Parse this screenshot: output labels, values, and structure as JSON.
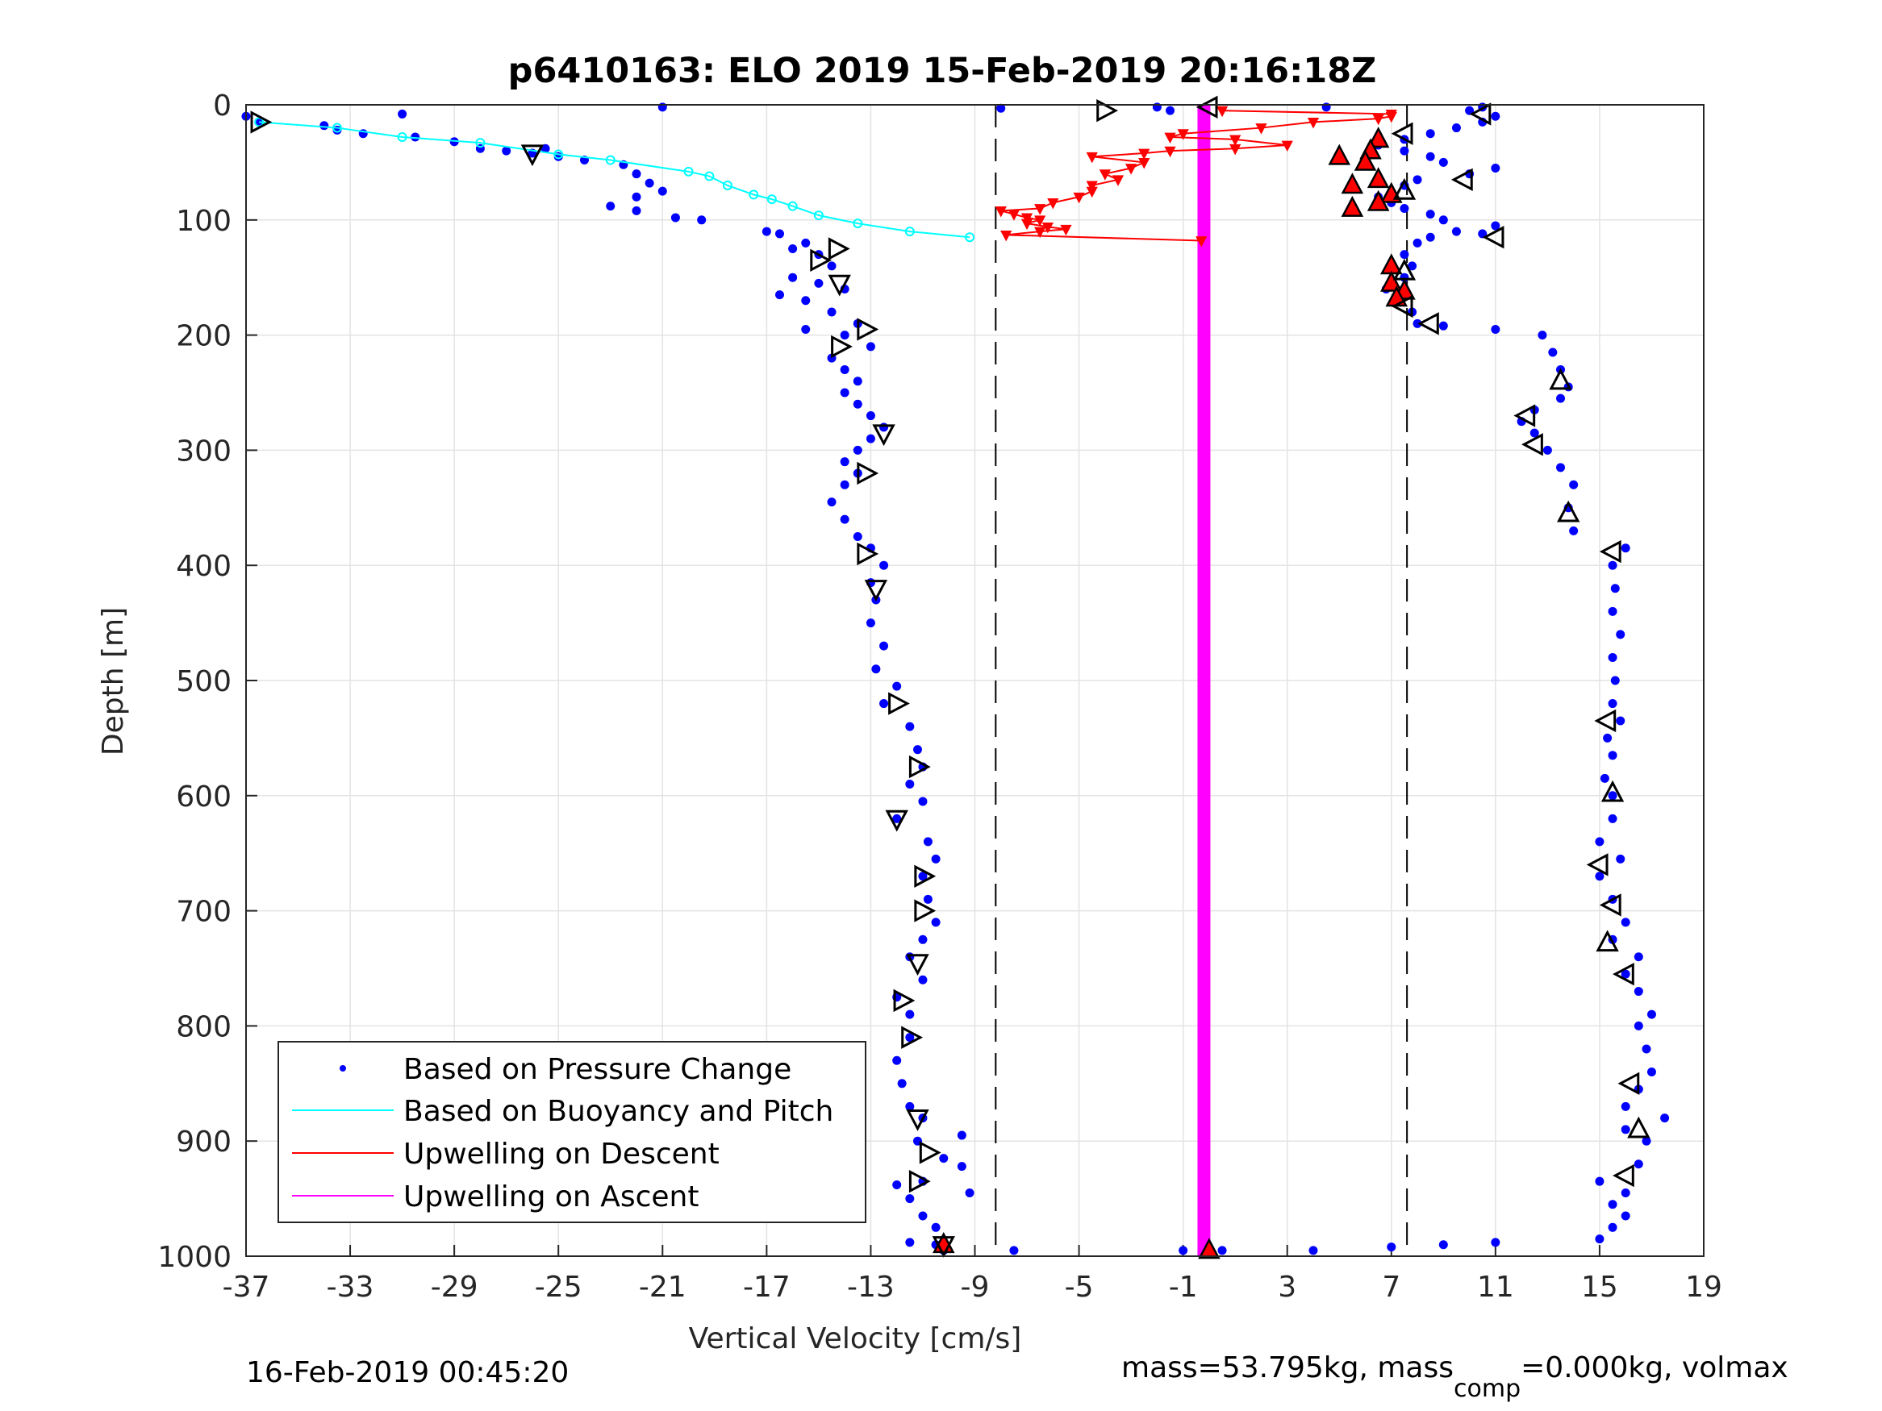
{
  "chart_data": {
    "type": "scatter",
    "title": "p6410163: ELO 2019 15-Feb-2019 20:16:18Z",
    "xlabel": "Vertical Velocity [cm/s]",
    "ylabel": "Depth [m]",
    "xlim": [
      -37,
      19
    ],
    "ylim": [
      0,
      1000
    ],
    "y_reversed": true,
    "xticks": [
      "-37",
      "-33",
      "-29",
      "-25",
      "-21",
      "-17",
      "-13",
      "-9",
      "-5",
      "-1",
      "3",
      "7",
      "11",
      "15",
      "19"
    ],
    "yticks": [
      "0",
      "100",
      "200",
      "300",
      "400",
      "500",
      "600",
      "700",
      "800",
      "900",
      "1000"
    ],
    "grid": true,
    "legend_position": "bottom-left",
    "reference_lines_x": [
      -8.2,
      7.6
    ],
    "footer_left": "16-Feb-2019 00:45:20",
    "footer_right": {
      "part1": "mass=53.795kg, mass",
      "sub": "comp",
      "part2": "=0.000kg, volmax"
    },
    "series": [
      {
        "name": "Based on Pressure Change",
        "marker": "dot",
        "color": "#0000ff",
        "descent": [
          [
            -37,
            10
          ],
          [
            -36.5,
            15
          ],
          [
            -34,
            18
          ],
          [
            -33.5,
            22
          ],
          [
            -32.5,
            25
          ],
          [
            -31,
            8
          ],
          [
            -30.5,
            28
          ],
          [
            -29,
            32
          ],
          [
            -28,
            38
          ],
          [
            -27,
            40
          ],
          [
            -26,
            42
          ],
          [
            -25.5,
            38
          ],
          [
            -25,
            45
          ],
          [
            -24,
            48
          ],
          [
            -22.5,
            52
          ],
          [
            -22,
            60
          ],
          [
            -21.5,
            68
          ],
          [
            -21,
            75
          ],
          [
            -22,
            80
          ],
          [
            -23,
            88
          ],
          [
            -22,
            92
          ],
          [
            -20.5,
            98
          ],
          [
            -19.5,
            100
          ],
          [
            -21,
            2
          ],
          [
            -17,
            110
          ],
          [
            -16.5,
            112
          ],
          [
            -15.5,
            120
          ],
          [
            -16,
            125
          ],
          [
            -15,
            130
          ],
          [
            -14.5,
            140
          ],
          [
            -16,
            150
          ],
          [
            -15,
            155
          ],
          [
            -14,
            160
          ],
          [
            -16.5,
            165
          ],
          [
            -15.5,
            170
          ],
          [
            -14.5,
            180
          ],
          [
            -13.5,
            190
          ],
          [
            -15.5,
            195
          ],
          [
            -14,
            200
          ],
          [
            -13,
            210
          ],
          [
            -14.5,
            220
          ],
          [
            -14,
            230
          ],
          [
            -13.5,
            240
          ],
          [
            -14,
            250
          ],
          [
            -13.5,
            260
          ],
          [
            -13,
            270
          ],
          [
            -12.5,
            280
          ],
          [
            -13,
            290
          ],
          [
            -13.5,
            300
          ],
          [
            -14,
            310
          ],
          [
            -13.5,
            320
          ],
          [
            -14,
            330
          ],
          [
            -14.5,
            345
          ],
          [
            -14,
            360
          ],
          [
            -13.5,
            375
          ],
          [
            -13,
            385
          ],
          [
            -12.5,
            400
          ],
          [
            -13,
            415
          ],
          [
            -12.8,
            430
          ],
          [
            -13,
            450
          ],
          [
            -12.5,
            470
          ],
          [
            -12.8,
            490
          ],
          [
            -12,
            505
          ],
          [
            -12.5,
            520
          ],
          [
            -11.5,
            540
          ],
          [
            -11.2,
            560
          ],
          [
            -11,
            575
          ],
          [
            -11.5,
            590
          ],
          [
            -11,
            605
          ],
          [
            -12,
            620
          ],
          [
            -10.8,
            640
          ],
          [
            -10.5,
            655
          ],
          [
            -11,
            670
          ],
          [
            -10.8,
            690
          ],
          [
            -10.5,
            710
          ],
          [
            -11,
            725
          ],
          [
            -11.5,
            740
          ],
          [
            -11,
            760
          ],
          [
            -12,
            775
          ],
          [
            -11.5,
            790
          ],
          [
            -11.5,
            810
          ],
          [
            -12,
            830
          ],
          [
            -11.8,
            850
          ],
          [
            -11.5,
            870
          ],
          [
            -11,
            880
          ],
          [
            -11.2,
            900
          ],
          [
            -9.5,
            895
          ],
          [
            -10.2,
            915
          ],
          [
            -9.5,
            922
          ],
          [
            -11,
            935
          ],
          [
            -12,
            938
          ],
          [
            -11.5,
            950
          ],
          [
            -9.2,
            945
          ],
          [
            -11,
            965
          ],
          [
            -10.5,
            975
          ],
          [
            -10.5,
            990
          ],
          [
            -10.2,
            995
          ],
          [
            -11.5,
            988
          ],
          [
            -7.5,
            995
          ],
          [
            -8,
            3
          ]
        ],
        "ascent": [
          [
            -1,
            995
          ],
          [
            0.5,
            995
          ],
          [
            4,
            995
          ],
          [
            7,
            992
          ],
          [
            9,
            990
          ],
          [
            11,
            988
          ],
          [
            15,
            985
          ],
          [
            15.5,
            975
          ],
          [
            16,
            965
          ],
          [
            15.5,
            955
          ],
          [
            16,
            945
          ],
          [
            15,
            935
          ],
          [
            16.5,
            920
          ],
          [
            16.8,
            900
          ],
          [
            16,
            890
          ],
          [
            17.5,
            880
          ],
          [
            16,
            870
          ],
          [
            16.5,
            855
          ],
          [
            17,
            840
          ],
          [
            16.8,
            820
          ],
          [
            16.5,
            800
          ],
          [
            17,
            790
          ],
          [
            16.5,
            770
          ],
          [
            16,
            755
          ],
          [
            16.5,
            740
          ],
          [
            15.5,
            725
          ],
          [
            16,
            710
          ],
          [
            15.5,
            690
          ],
          [
            15,
            670
          ],
          [
            15.8,
            655
          ],
          [
            15,
            640
          ],
          [
            15.5,
            620
          ],
          [
            15.5,
            600
          ],
          [
            15.2,
            585
          ],
          [
            15.5,
            565
          ],
          [
            15.3,
            550
          ],
          [
            15.8,
            535
          ],
          [
            15.5,
            520
          ],
          [
            15.6,
            500
          ],
          [
            15.5,
            480
          ],
          [
            15.8,
            460
          ],
          [
            15.5,
            440
          ],
          [
            15.6,
            420
          ],
          [
            15.5,
            400
          ],
          [
            16,
            385
          ],
          [
            14,
            370
          ],
          [
            13.8,
            350
          ],
          [
            14,
            330
          ],
          [
            13.5,
            315
          ],
          [
            13,
            300
          ],
          [
            12.5,
            285
          ],
          [
            12,
            275
          ],
          [
            12.5,
            265
          ],
          [
            13.5,
            255
          ],
          [
            13.8,
            245
          ],
          [
            13.5,
            230
          ],
          [
            13.2,
            215
          ],
          [
            12.8,
            200
          ],
          [
            11,
            195
          ],
          [
            9,
            192
          ],
          [
            8,
            190
          ],
          [
            7.8,
            180
          ],
          [
            7.2,
            170
          ],
          [
            6.8,
            160
          ],
          [
            7.5,
            150
          ],
          [
            7.8,
            140
          ],
          [
            7.5,
            130
          ],
          [
            8,
            120
          ],
          [
            8.5,
            115
          ],
          [
            9.5,
            110
          ],
          [
            10.5,
            112
          ],
          [
            11,
            105
          ],
          [
            9,
            100
          ],
          [
            8.5,
            95
          ],
          [
            7.5,
            90
          ],
          [
            7,
            85
          ],
          [
            6.5,
            80
          ],
          [
            7.5,
            70
          ],
          [
            8,
            65
          ],
          [
            10,
            60
          ],
          [
            11,
            55
          ],
          [
            9,
            50
          ],
          [
            8.5,
            45
          ],
          [
            7.5,
            40
          ],
          [
            6.5,
            35
          ],
          [
            7.5,
            30
          ],
          [
            8.5,
            25
          ],
          [
            9.5,
            20
          ],
          [
            10.5,
            15
          ],
          [
            11,
            10
          ],
          [
            10,
            5
          ],
          [
            10.5,
            2
          ],
          [
            4.5,
            2
          ],
          [
            -2,
            2
          ],
          [
            -1.5,
            5
          ]
        ]
      },
      {
        "name": "Based on Buoyancy and Pitch",
        "marker": "line+circle",
        "color": "#00ffff",
        "points": [
          [
            -36.5,
            15
          ],
          [
            -33.5,
            20
          ],
          [
            -31,
            28
          ],
          [
            -28,
            33
          ],
          [
            -25,
            43
          ],
          [
            -23,
            48
          ],
          [
            -20,
            58
          ],
          [
            -19.2,
            62
          ],
          [
            -18.5,
            70
          ],
          [
            -17.5,
            78
          ],
          [
            -16.8,
            82
          ],
          [
            -16,
            88
          ],
          [
            -15,
            96
          ],
          [
            -13.5,
            103
          ],
          [
            -11.5,
            110
          ],
          [
            -9.2,
            115
          ]
        ]
      },
      {
        "name": "Upwelling on Descent",
        "marker": "line+down-triangle",
        "color": "#ff0000",
        "points": [
          [
            0.5,
            5
          ],
          [
            7,
            8
          ],
          [
            7,
            10
          ],
          [
            6.5,
            12
          ],
          [
            4,
            15
          ],
          [
            2,
            20
          ],
          [
            -1,
            25
          ],
          [
            -1.5,
            28
          ],
          [
            1,
            30
          ],
          [
            3,
            35
          ],
          [
            1,
            38
          ],
          [
            -1.5,
            40
          ],
          [
            -2.5,
            42
          ],
          [
            -4.5,
            45
          ],
          [
            -2.5,
            50
          ],
          [
            -3,
            55
          ],
          [
            -4,
            60
          ],
          [
            -3.5,
            65
          ],
          [
            -4.5,
            70
          ],
          [
            -4.5,
            75
          ],
          [
            -5,
            80
          ],
          [
            -6,
            85
          ],
          [
            -6.5,
            90
          ],
          [
            -8,
            92
          ],
          [
            -7.5,
            95
          ],
          [
            -7,
            98
          ],
          [
            -6.5,
            100
          ],
          [
            -7,
            103
          ],
          [
            -6.2,
            106
          ],
          [
            -5.5,
            108
          ],
          [
            -6.5,
            110
          ],
          [
            -7.8,
            113
          ],
          [
            -0.3,
            118
          ]
        ]
      },
      {
        "name": "Upwelling on Ascent",
        "marker": "thick-line",
        "color": "#ff00ff",
        "points": [
          [
            -0.2,
            0
          ],
          [
            -0.2,
            1000
          ]
        ]
      }
    ],
    "ascent_red_triangles": [
      [
        0,
        995
      ],
      [
        -10.2,
        990
      ],
      [
        6.5,
        30
      ],
      [
        5,
        45
      ],
      [
        6.2,
        40
      ],
      [
        6,
        50
      ],
      [
        6.5,
        65
      ],
      [
        5.5,
        70
      ],
      [
        7,
        78
      ],
      [
        6.5,
        85
      ],
      [
        5.5,
        90
      ],
      [
        7,
        140
      ],
      [
        7,
        155
      ],
      [
        7.5,
        162
      ],
      [
        7.2,
        168
      ]
    ],
    "pitch_triangle_markers": {
      "descent": [
        [
          -36.5,
          15
        ],
        [
          -26,
          42
        ],
        [
          -14.3,
          125
        ],
        [
          -15,
          135
        ],
        [
          -14.2,
          155
        ],
        [
          -13.2,
          195
        ],
        [
          -14.2,
          210
        ],
        [
          -12.5,
          285
        ],
        [
          -13.2,
          320
        ],
        [
          -13.2,
          390
        ],
        [
          -12.8,
          420
        ],
        [
          -12,
          520
        ],
        [
          -11.2,
          575
        ],
        [
          -12,
          620
        ],
        [
          -11,
          670
        ],
        [
          -11,
          700
        ],
        [
          -11.2,
          745
        ],
        [
          -11.8,
          778
        ],
        [
          -11.5,
          810
        ],
        [
          -11.2,
          880
        ],
        [
          -10.8,
          910
        ],
        [
          -11.2,
          935
        ],
        [
          -10.2,
          990
        ],
        [
          -4,
          5
        ]
      ],
      "ascent": [
        [
          10.5,
          8
        ],
        [
          7.5,
          25
        ],
        [
          7.5,
          75
        ],
        [
          9.8,
          65
        ],
        [
          11,
          115
        ],
        [
          7.5,
          145
        ],
        [
          7.5,
          175
        ],
        [
          8.5,
          190
        ],
        [
          13.5,
          240
        ],
        [
          12.2,
          270
        ],
        [
          12.5,
          295
        ],
        [
          13.8,
          355
        ],
        [
          15.5,
          388
        ],
        [
          15.3,
          535
        ],
        [
          15.5,
          598
        ],
        [
          15,
          660
        ],
        [
          15.5,
          695
        ],
        [
          15.3,
          728
        ],
        [
          16,
          755
        ],
        [
          16.2,
          850
        ],
        [
          16.5,
          890
        ],
        [
          16,
          930
        ],
        [
          0,
          2
        ]
      ]
    }
  },
  "legend": {
    "items": [
      {
        "label": "Based on Pressure Change",
        "style": "dot",
        "color": "#0000ff"
      },
      {
        "label": "Based on Buoyancy and Pitch",
        "style": "line",
        "color": "#00ffff"
      },
      {
        "label": "Upwelling on Descent",
        "style": "line",
        "color": "#ff0000"
      },
      {
        "label": "Upwelling on Ascent",
        "style": "line",
        "color": "#ff00ff"
      }
    ]
  }
}
